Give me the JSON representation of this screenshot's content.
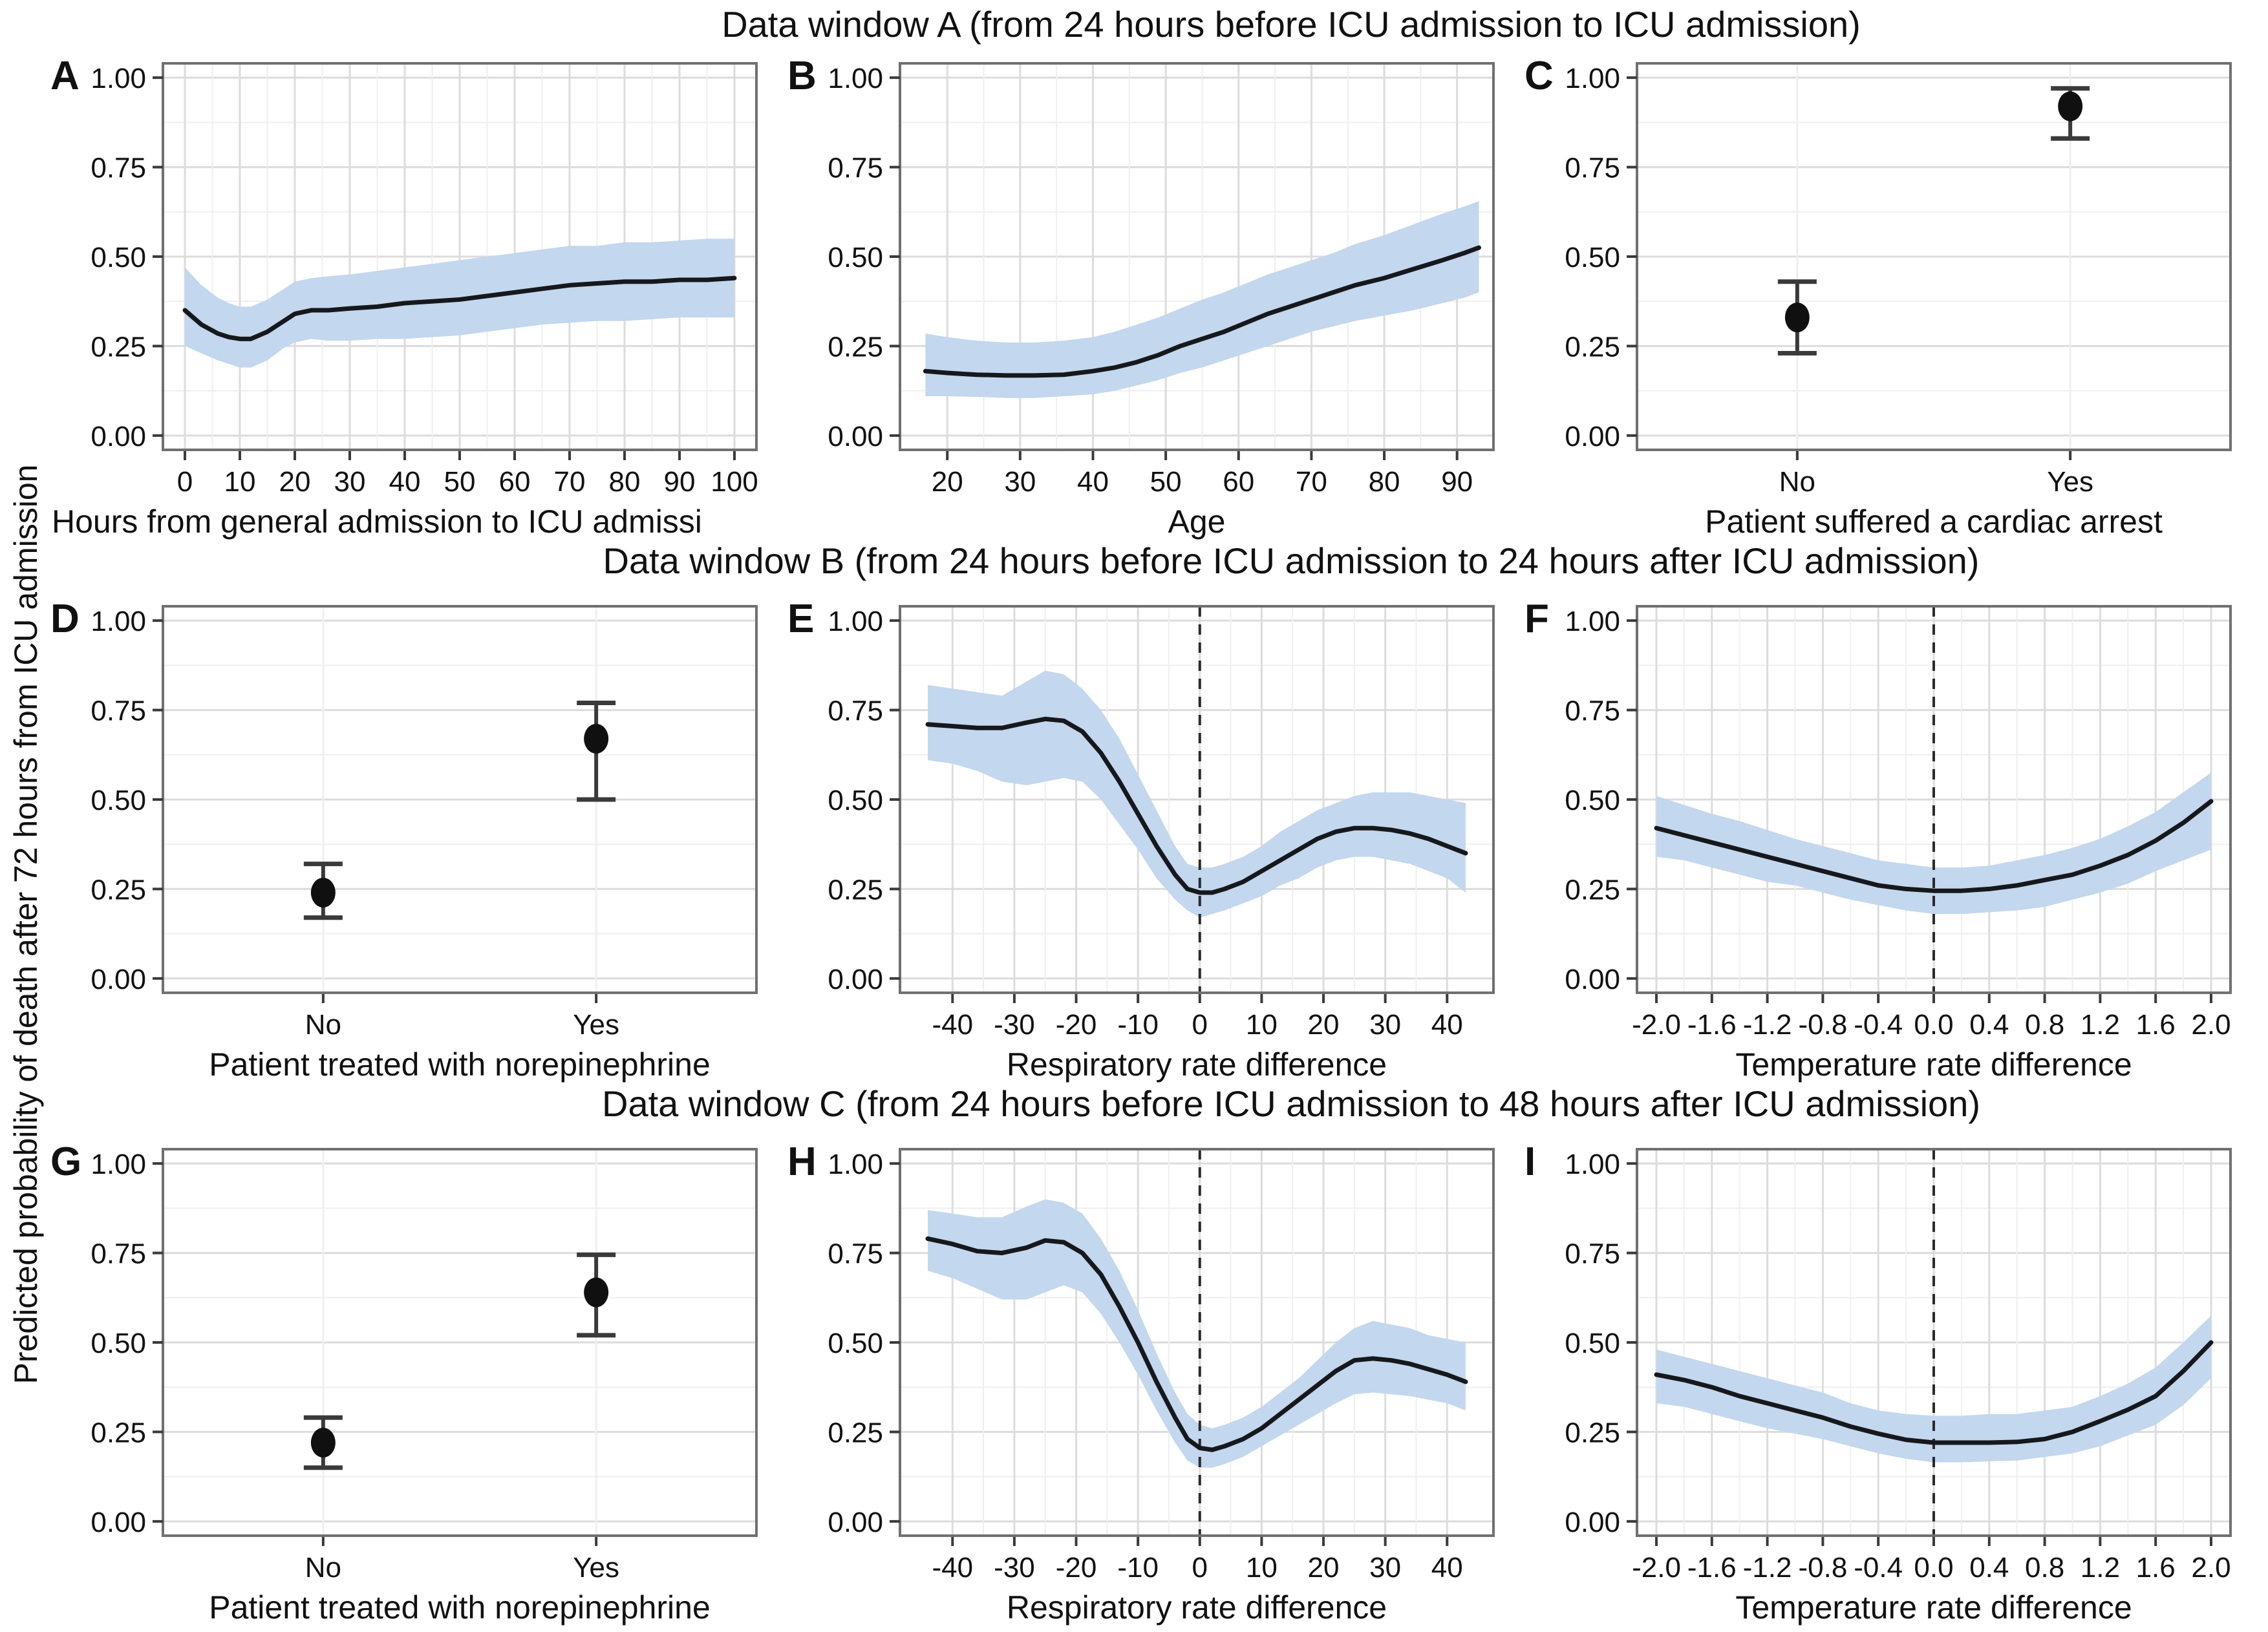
{
  "figure": {
    "ylabel": "Predicted probability of death after 72 hours from ICU admission",
    "colors": {
      "band": "#c3d7ee",
      "line": "#16181c",
      "grid_major": "#dcdcdc",
      "grid_minor": "#efefef",
      "border": "#707070",
      "dashed": "#2a2a2a",
      "point": "#101010",
      "errorbar": "#3a3a3a",
      "text": "#111111",
      "plot_bg": "#ffffff"
    },
    "ylim": [
      -0.04,
      1.04
    ],
    "yticks": [
      0,
      0.25,
      0.5,
      0.75,
      1
    ],
    "ytick_labels": [
      "0.00",
      "0.25",
      "0.50",
      "0.75",
      "1.00"
    ],
    "yminor": [
      0.125,
      0.375,
      0.625,
      0.875
    ],
    "cat_pos": [
      0.27,
      0.73
    ]
  },
  "rows": [
    {
      "title": "Data window A (from 24 hours before ICU admission to ICU admission)"
    },
    {
      "title": "Data window B (from 24 hours before ICU admission to 24 hours after ICU admission)"
    },
    {
      "title": "Data window C (from 24 hours before ICU admission to 48 hours after ICU admission)"
    }
  ],
  "chart_data": [
    {
      "letter": "A",
      "type": "area",
      "xlabel": "Hours from general admission to ICU admissi",
      "xlabel_anchor": "left",
      "xlim": [
        -4,
        104
      ],
      "xticks": [
        0,
        10,
        20,
        30,
        40,
        50,
        60,
        70,
        80,
        90,
        100
      ],
      "xtick_labels": [
        "0",
        "10",
        "20",
        "30",
        "40",
        "50",
        "60",
        "70",
        "80",
        "90",
        "100"
      ],
      "dashed_x": null,
      "x": [
        0,
        3,
        6,
        8,
        10,
        12,
        15,
        18,
        20,
        23,
        26,
        30,
        35,
        40,
        45,
        50,
        55,
        60,
        65,
        70,
        75,
        80,
        85,
        90,
        95,
        100
      ],
      "y": [
        0.35,
        0.31,
        0.285,
        0.275,
        0.27,
        0.27,
        0.29,
        0.32,
        0.34,
        0.35,
        0.35,
        0.355,
        0.36,
        0.37,
        0.375,
        0.38,
        0.39,
        0.4,
        0.41,
        0.42,
        0.425,
        0.43,
        0.43,
        0.435,
        0.435,
        0.44
      ],
      "lo": [
        0.25,
        0.23,
        0.21,
        0.2,
        0.19,
        0.19,
        0.21,
        0.245,
        0.26,
        0.27,
        0.265,
        0.265,
        0.27,
        0.27,
        0.275,
        0.28,
        0.29,
        0.3,
        0.31,
        0.315,
        0.32,
        0.32,
        0.325,
        0.33,
        0.33,
        0.33
      ],
      "hi": [
        0.47,
        0.42,
        0.385,
        0.37,
        0.36,
        0.36,
        0.38,
        0.41,
        0.43,
        0.44,
        0.445,
        0.45,
        0.46,
        0.47,
        0.48,
        0.49,
        0.5,
        0.51,
        0.52,
        0.53,
        0.53,
        0.54,
        0.54,
        0.545,
        0.55,
        0.55
      ]
    },
    {
      "letter": "B",
      "type": "area",
      "xlabel": "Age",
      "xlabel_anchor": "center",
      "xlim": [
        13.5,
        95
      ],
      "xticks": [
        20,
        30,
        40,
        50,
        60,
        70,
        80,
        90
      ],
      "xtick_labels": [
        "20",
        "30",
        "40",
        "50",
        "60",
        "70",
        "80",
        "90"
      ],
      "dashed_x": null,
      "x": [
        17,
        20,
        24,
        28,
        32,
        36,
        40,
        43,
        46,
        49,
        52,
        55,
        58,
        61,
        64,
        67,
        70,
        73,
        76,
        80,
        84,
        88,
        91,
        93
      ],
      "y": [
        0.18,
        0.175,
        0.17,
        0.168,
        0.168,
        0.17,
        0.18,
        0.19,
        0.205,
        0.225,
        0.25,
        0.27,
        0.29,
        0.315,
        0.34,
        0.36,
        0.38,
        0.4,
        0.42,
        0.44,
        0.465,
        0.49,
        0.51,
        0.525
      ],
      "lo": [
        0.11,
        0.11,
        0.108,
        0.105,
        0.105,
        0.11,
        0.115,
        0.125,
        0.14,
        0.155,
        0.175,
        0.19,
        0.21,
        0.23,
        0.25,
        0.27,
        0.29,
        0.305,
        0.32,
        0.335,
        0.35,
        0.37,
        0.385,
        0.4
      ],
      "hi": [
        0.285,
        0.275,
        0.265,
        0.26,
        0.26,
        0.265,
        0.275,
        0.29,
        0.31,
        0.33,
        0.355,
        0.38,
        0.4,
        0.425,
        0.45,
        0.47,
        0.49,
        0.51,
        0.535,
        0.56,
        0.59,
        0.62,
        0.64,
        0.655
      ]
    },
    {
      "letter": "C",
      "type": "pointrange",
      "xlabel": "Patient suffered a cardiac arrest",
      "xlabel_anchor": "center",
      "categories": [
        "No",
        "Yes"
      ],
      "values": [
        0.33,
        0.92
      ],
      "lo": [
        0.23,
        0.83
      ],
      "hi": [
        0.43,
        0.97
      ]
    },
    {
      "letter": "D",
      "type": "pointrange",
      "xlabel": "Patient treated with norepinephrine",
      "xlabel_anchor": "center",
      "categories": [
        "No",
        "Yes"
      ],
      "values": [
        0.24,
        0.67
      ],
      "lo": [
        0.17,
        0.5
      ],
      "hi": [
        0.32,
        0.77
      ]
    },
    {
      "letter": "E",
      "type": "area",
      "xlabel": "Respiratory rate difference",
      "xlabel_anchor": "center",
      "xlim": [
        -48.5,
        47.5
      ],
      "xticks": [
        -40,
        -30,
        -20,
        -10,
        0,
        10,
        20,
        30,
        40
      ],
      "xtick_labels": [
        "-40",
        "-30",
        "-20",
        "-10",
        "0",
        "10",
        "20",
        "30",
        "40"
      ],
      "dashed_x": 0,
      "x": [
        -44,
        -40,
        -36,
        -32,
        -28,
        -25,
        -22,
        -19,
        -16,
        -13,
        -10,
        -7,
        -4,
        -2,
        0,
        2,
        4,
        7,
        10,
        13,
        16,
        19,
        22,
        25,
        28,
        31,
        34,
        37,
        40,
        43
      ],
      "y": [
        0.71,
        0.705,
        0.7,
        0.7,
        0.715,
        0.725,
        0.72,
        0.69,
        0.63,
        0.55,
        0.46,
        0.37,
        0.29,
        0.25,
        0.24,
        0.24,
        0.25,
        0.27,
        0.3,
        0.33,
        0.36,
        0.39,
        0.41,
        0.42,
        0.42,
        0.415,
        0.405,
        0.39,
        0.37,
        0.35
      ],
      "lo": [
        0.61,
        0.6,
        0.58,
        0.55,
        0.54,
        0.55,
        0.56,
        0.55,
        0.5,
        0.43,
        0.36,
        0.28,
        0.22,
        0.19,
        0.17,
        0.18,
        0.19,
        0.21,
        0.23,
        0.26,
        0.28,
        0.31,
        0.33,
        0.34,
        0.34,
        0.33,
        0.32,
        0.3,
        0.28,
        0.24
      ],
      "hi": [
        0.82,
        0.81,
        0.8,
        0.79,
        0.83,
        0.86,
        0.85,
        0.81,
        0.75,
        0.67,
        0.57,
        0.47,
        0.37,
        0.32,
        0.31,
        0.31,
        0.32,
        0.34,
        0.37,
        0.41,
        0.44,
        0.47,
        0.49,
        0.51,
        0.52,
        0.52,
        0.52,
        0.51,
        0.5,
        0.49
      ]
    },
    {
      "letter": "F",
      "type": "area",
      "xlabel": "Temperature rate difference",
      "xlabel_anchor": "center",
      "xlim": [
        -2.14,
        2.14
      ],
      "xticks": [
        -2.0,
        -1.6,
        -1.2,
        -0.8,
        -0.4,
        0.0,
        0.4,
        0.8,
        1.2,
        1.6,
        2.0
      ],
      "xtick_labels": [
        "-2.0",
        "-1.6",
        "-1.2",
        "-0.8",
        "-0.4",
        "0.0",
        "0.4",
        "0.8",
        "1.2",
        "1.6",
        "2.0"
      ],
      "dashed_x": 0,
      "x": [
        -2.0,
        -1.8,
        -1.6,
        -1.4,
        -1.2,
        -1.0,
        -0.8,
        -0.6,
        -0.4,
        -0.2,
        0.0,
        0.2,
        0.4,
        0.6,
        0.8,
        1.0,
        1.2,
        1.4,
        1.6,
        1.8,
        2.0
      ],
      "y": [
        0.42,
        0.4,
        0.38,
        0.36,
        0.34,
        0.32,
        0.3,
        0.28,
        0.26,
        0.25,
        0.245,
        0.245,
        0.25,
        0.26,
        0.275,
        0.29,
        0.315,
        0.345,
        0.385,
        0.435,
        0.495
      ],
      "lo": [
        0.34,
        0.33,
        0.31,
        0.29,
        0.27,
        0.26,
        0.24,
        0.22,
        0.205,
        0.19,
        0.18,
        0.18,
        0.185,
        0.19,
        0.2,
        0.22,
        0.24,
        0.265,
        0.3,
        0.33,
        0.36
      ],
      "hi": [
        0.51,
        0.485,
        0.46,
        0.44,
        0.415,
        0.39,
        0.37,
        0.35,
        0.33,
        0.32,
        0.31,
        0.31,
        0.315,
        0.33,
        0.345,
        0.365,
        0.39,
        0.425,
        0.465,
        0.52,
        0.575
      ]
    },
    {
      "letter": "G",
      "type": "pointrange",
      "xlabel": "Patient treated with norepinephrine",
      "xlabel_anchor": "center",
      "categories": [
        "No",
        "Yes"
      ],
      "values": [
        0.22,
        0.64
      ],
      "lo": [
        0.15,
        0.52
      ],
      "hi": [
        0.29,
        0.745
      ]
    },
    {
      "letter": "H",
      "type": "area",
      "xlabel": "Respiratory rate difference",
      "xlabel_anchor": "center",
      "xlim": [
        -48.5,
        47.5
      ],
      "xticks": [
        -40,
        -30,
        -20,
        -10,
        0,
        10,
        20,
        30,
        40
      ],
      "xtick_labels": [
        "-40",
        "-30",
        "-20",
        "-10",
        "0",
        "10",
        "20",
        "30",
        "40"
      ],
      "dashed_x": 0,
      "x": [
        -44,
        -40,
        -36,
        -32,
        -28,
        -25,
        -22,
        -19,
        -16,
        -13,
        -10,
        -7,
        -4,
        -2,
        0,
        2,
        4,
        7,
        10,
        13,
        16,
        19,
        22,
        25,
        28,
        31,
        34,
        37,
        40,
        43
      ],
      "y": [
        0.79,
        0.775,
        0.755,
        0.75,
        0.765,
        0.785,
        0.78,
        0.75,
        0.69,
        0.6,
        0.5,
        0.39,
        0.29,
        0.23,
        0.205,
        0.2,
        0.21,
        0.23,
        0.26,
        0.3,
        0.34,
        0.38,
        0.42,
        0.45,
        0.455,
        0.45,
        0.44,
        0.425,
        0.41,
        0.39
      ],
      "lo": [
        0.7,
        0.68,
        0.65,
        0.62,
        0.62,
        0.64,
        0.66,
        0.64,
        0.58,
        0.5,
        0.41,
        0.31,
        0.22,
        0.17,
        0.15,
        0.15,
        0.16,
        0.18,
        0.21,
        0.24,
        0.27,
        0.3,
        0.33,
        0.355,
        0.36,
        0.355,
        0.35,
        0.34,
        0.33,
        0.31
      ],
      "hi": [
        0.87,
        0.86,
        0.85,
        0.85,
        0.88,
        0.9,
        0.89,
        0.86,
        0.79,
        0.7,
        0.59,
        0.47,
        0.36,
        0.3,
        0.27,
        0.26,
        0.27,
        0.29,
        0.32,
        0.36,
        0.4,
        0.45,
        0.5,
        0.54,
        0.56,
        0.55,
        0.54,
        0.52,
        0.51,
        0.5
      ]
    },
    {
      "letter": "I",
      "type": "area",
      "xlabel": "Temperature rate difference",
      "xlabel_anchor": "center",
      "xlim": [
        -2.14,
        2.14
      ],
      "xticks": [
        -2.0,
        -1.6,
        -1.2,
        -0.8,
        -0.4,
        0.0,
        0.4,
        0.8,
        1.2,
        1.6,
        2.0
      ],
      "xtick_labels": [
        "-2.0",
        "-1.6",
        "-1.2",
        "-0.8",
        "-0.4",
        "0.0",
        "0.4",
        "0.8",
        "1.2",
        "1.6",
        "2.0"
      ],
      "dashed_x": 0,
      "x": [
        -2.0,
        -1.8,
        -1.6,
        -1.4,
        -1.2,
        -1.0,
        -0.8,
        -0.6,
        -0.4,
        -0.2,
        0.0,
        0.2,
        0.4,
        0.6,
        0.8,
        1.0,
        1.2,
        1.4,
        1.6,
        1.8,
        2.0
      ],
      "y": [
        0.41,
        0.395,
        0.375,
        0.35,
        0.33,
        0.31,
        0.29,
        0.265,
        0.245,
        0.228,
        0.22,
        0.22,
        0.22,
        0.222,
        0.23,
        0.25,
        0.28,
        0.312,
        0.35,
        0.42,
        0.5
      ],
      "lo": [
        0.33,
        0.32,
        0.3,
        0.28,
        0.26,
        0.245,
        0.23,
        0.21,
        0.19,
        0.175,
        0.165,
        0.165,
        0.168,
        0.17,
        0.18,
        0.19,
        0.21,
        0.24,
        0.27,
        0.325,
        0.4
      ],
      "hi": [
        0.48,
        0.46,
        0.44,
        0.42,
        0.4,
        0.38,
        0.36,
        0.33,
        0.31,
        0.3,
        0.295,
        0.295,
        0.3,
        0.3,
        0.31,
        0.32,
        0.35,
        0.385,
        0.43,
        0.5,
        0.575
      ]
    }
  ]
}
